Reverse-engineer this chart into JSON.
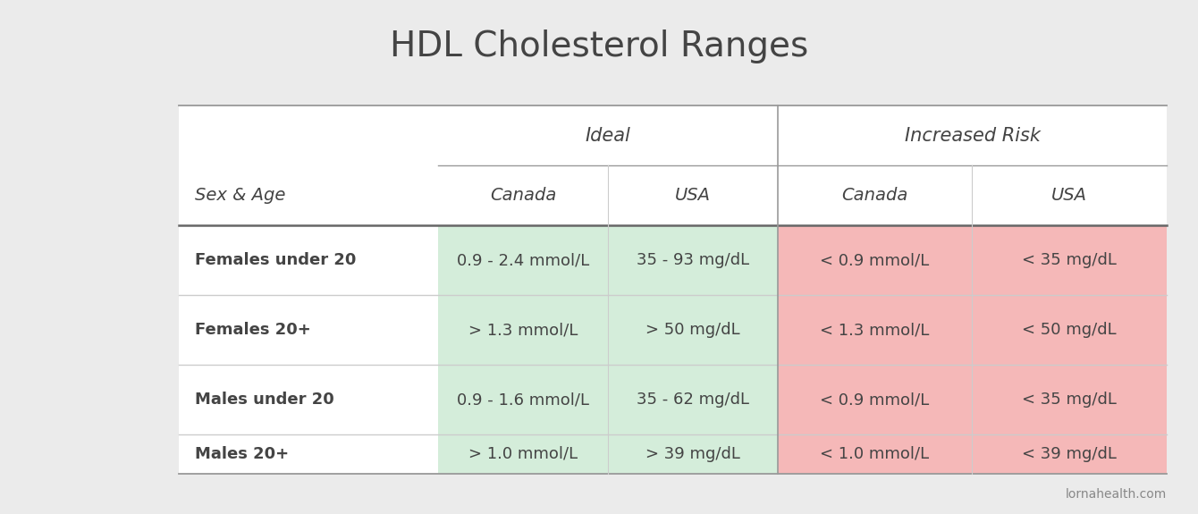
{
  "title": "HDL Cholesterol Ranges",
  "background_color": "#ebebeb",
  "table_bg": "#ffffff",
  "green_color": "#d4edda",
  "red_color": "#f5b8b8",
  "line_color": "#999999",
  "text_color": "#444444",
  "header2": [
    "Sex & Age",
    "Canada",
    "USA",
    "Canada",
    "USA"
  ],
  "rows": [
    [
      "Females under 20",
      "0.9 - 2.4 mmol/L",
      "35 - 93 mg/dL",
      "< 0.9 mmol/L",
      "< 35 mg/dL"
    ],
    [
      "Females 20+",
      "> 1.3 mmol/L",
      "> 50 mg/dL",
      "< 1.3 mmol/L",
      "< 50 mg/dL"
    ],
    [
      "Males under 20",
      "0.9 - 1.6 mmol/L",
      "35 - 62 mg/dL",
      "< 0.9 mmol/L",
      "< 35 mg/dL"
    ],
    [
      "Males 20+",
      "> 1.0 mmol/L",
      "> 39 mg/dL",
      "< 1.0 mmol/L",
      "< 39 mg/dL"
    ]
  ],
  "watermark": "lornahealth.com",
  "title_fontsize": 28,
  "header1_fontsize": 15,
  "header2_fontsize": 14,
  "cell_fontsize": 13,
  "col_label_fontsize": 13
}
